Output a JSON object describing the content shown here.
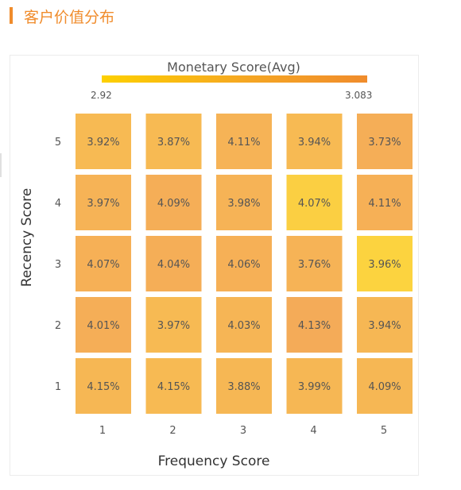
{
  "page": {
    "title": "客户价值分布"
  },
  "chart_data": {
    "type": "heatmap",
    "title": "Monetary Score(Avg)",
    "xlabel": "Frequency Score",
    "ylabel": "Recency Score",
    "x_categories": [
      "1",
      "2",
      "3",
      "4",
      "5"
    ],
    "y_categories": [
      "1",
      "2",
      "3",
      "4",
      "5"
    ],
    "color_scale": {
      "min": 2.92,
      "max": 3.083,
      "min_label": "2.92",
      "max_label": "3.083",
      "colors": [
        "#fdd000",
        "#f5a623",
        "#f08c2c"
      ]
    },
    "cells": [
      {
        "x": "1",
        "y": "5",
        "label": "3.92%",
        "value": 3.0
      },
      {
        "x": "2",
        "y": "5",
        "label": "3.87%",
        "value": 3.0
      },
      {
        "x": "3",
        "y": "5",
        "label": "4.11%",
        "value": 3.03
      },
      {
        "x": "4",
        "y": "5",
        "label": "3.94%",
        "value": 3.0
      },
      {
        "x": "5",
        "y": "5",
        "label": "3.73%",
        "value": 3.05
      },
      {
        "x": "1",
        "y": "4",
        "label": "3.97%",
        "value": 3.03
      },
      {
        "x": "2",
        "y": "4",
        "label": "4.09%",
        "value": 3.05
      },
      {
        "x": "3",
        "y": "4",
        "label": "3.98%",
        "value": 3.03
      },
      {
        "x": "4",
        "y": "4",
        "label": "4.07%",
        "value": 2.95
      },
      {
        "x": "5",
        "y": "4",
        "label": "4.11%",
        "value": 3.04
      },
      {
        "x": "1",
        "y": "3",
        "label": "4.07%",
        "value": 3.04
      },
      {
        "x": "2",
        "y": "3",
        "label": "4.04%",
        "value": 3.05
      },
      {
        "x": "3",
        "y": "3",
        "label": "4.06%",
        "value": 3.04
      },
      {
        "x": "4",
        "y": "3",
        "label": "3.76%",
        "value": 3.03
      },
      {
        "x": "5",
        "y": "3",
        "label": "3.96%",
        "value": 2.94
      },
      {
        "x": "1",
        "y": "2",
        "label": "4.01%",
        "value": 3.05
      },
      {
        "x": "2",
        "y": "2",
        "label": "3.97%",
        "value": 3.0
      },
      {
        "x": "3",
        "y": "2",
        "label": "4.03%",
        "value": 3.02
      },
      {
        "x": "4",
        "y": "2",
        "label": "4.13%",
        "value": 3.06
      },
      {
        "x": "5",
        "y": "2",
        "label": "3.94%",
        "value": 3.01
      },
      {
        "x": "1",
        "y": "1",
        "label": "4.15%",
        "value": 3.01
      },
      {
        "x": "2",
        "y": "1",
        "label": "4.15%",
        "value": 3.0
      },
      {
        "x": "3",
        "y": "1",
        "label": "3.88%",
        "value": 3.01
      },
      {
        "x": "4",
        "y": "1",
        "label": "3.99%",
        "value": 3.01
      },
      {
        "x": "5",
        "y": "1",
        "label": "4.09%",
        "value": 3.01
      }
    ]
  }
}
